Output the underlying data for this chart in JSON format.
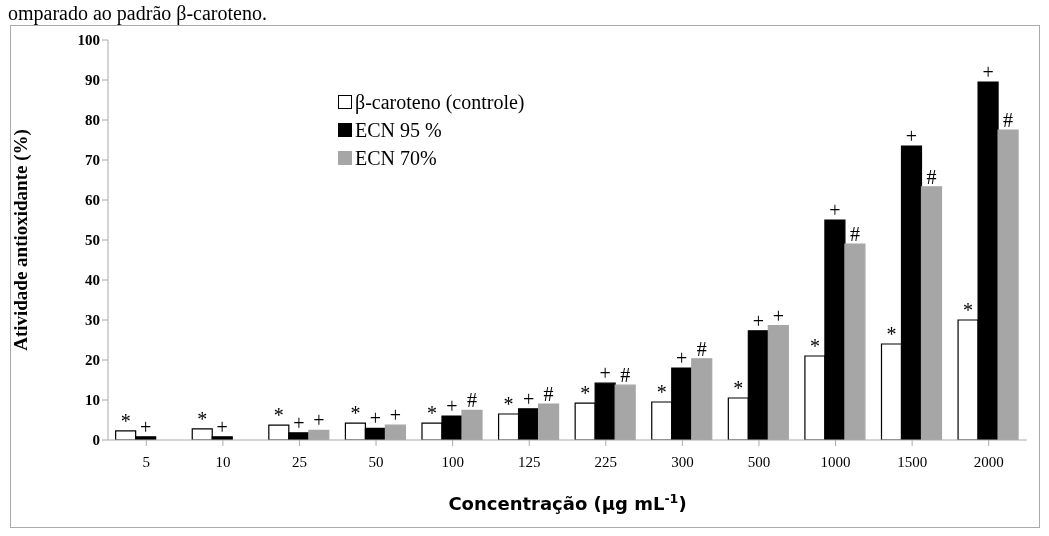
{
  "chart_data": {
    "type": "bar",
    "xlabel": "Concentração (µg mL$^{-1}$)",
    "ylabel": "Atividade antioxidante (%)",
    "annotations": [
      "omparado ao padrão β-caroteno."
    ],
    "categories": [
      "5",
      "10",
      "25",
      "50",
      "100",
      "125",
      "225",
      "300",
      "500",
      "1000",
      "1500",
      "2000"
    ],
    "series": [
      {
        "name": "β-caroteno (controle)",
        "color": "#ffffff",
        "values": [
          2.3,
          2.8,
          3.7,
          4.2,
          4.2,
          6.5,
          9.2,
          9.5,
          10.5,
          21,
          24,
          30
        ],
        "value_labels": [
          "*",
          "*",
          "*",
          "*",
          "*",
          "*",
          "*",
          "*",
          "*",
          "*",
          "*",
          "*"
        ]
      },
      {
        "name": "ECN 95 %",
        "color": "#000000",
        "values": [
          0.8,
          0.8,
          1.8,
          2.9,
          6,
          7.8,
          14.2,
          18,
          27.3,
          55,
          73.5,
          89.5
        ],
        "value_labels": [
          "+",
          "+",
          "+",
          "+",
          "+",
          "+",
          "+",
          "+",
          "+",
          "+",
          "+",
          "+"
        ]
      },
      {
        "name": "ECN 70%",
        "color": "#a6a6a6",
        "values": [
          null,
          null,
          2.4,
          3.7,
          7.4,
          9,
          13.7,
          20.3,
          28.6,
          49,
          63.3,
          77.5
        ],
        "value_labels": [
          null,
          null,
          "+",
          "+",
          "#",
          "#",
          "#",
          "#",
          "+",
          "#",
          "#",
          "#"
        ]
      }
    ],
    "ylim": [
      0,
      100
    ],
    "yticks": [
      0,
      10,
      20,
      30,
      40,
      50,
      60,
      70,
      80,
      90,
      100
    ],
    "grid": false,
    "legend": "top left"
  }
}
